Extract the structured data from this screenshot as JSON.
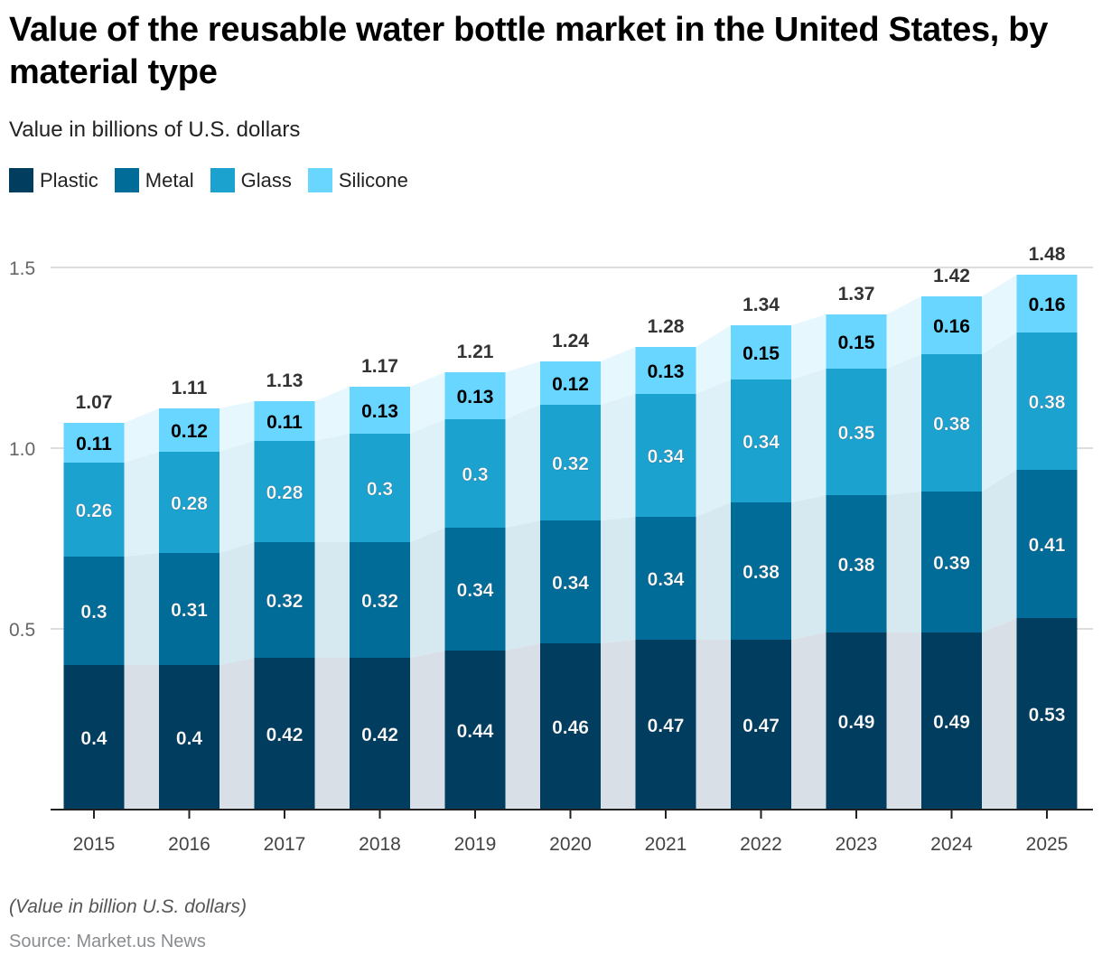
{
  "chart_data": {
    "type": "bar",
    "stacked": true,
    "title": "Value of the reusable water bottle market in the United States, by material type",
    "subtitle": "Value in billions of U.S. dollars",
    "xlabel": "",
    "ylabel": "",
    "ylim": [
      0,
      1.5
    ],
    "yticks": [
      0.5,
      1.0,
      1.5
    ],
    "ytick_labels": [
      "0.5",
      "1.0",
      "1.5"
    ],
    "grid": true,
    "legend_position": "top-left",
    "categories": [
      "2015",
      "2016",
      "2017",
      "2018",
      "2019",
      "2020",
      "2021",
      "2022",
      "2023",
      "2024",
      "2025"
    ],
    "series": [
      {
        "name": "Plastic",
        "color": "#003d5f",
        "label_color": "#ffffff",
        "values": [
          0.4,
          0.4,
          0.42,
          0.42,
          0.44,
          0.46,
          0.47,
          0.47,
          0.49,
          0.49,
          0.53
        ]
      },
      {
        "name": "Metal",
        "color": "#006c97",
        "label_color": "#ffffff",
        "values": [
          0.3,
          0.31,
          0.32,
          0.32,
          0.34,
          0.34,
          0.34,
          0.38,
          0.38,
          0.39,
          0.41
        ]
      },
      {
        "name": "Glass",
        "color": "#1ba2cf",
        "label_color": "#ffffff",
        "values": [
          0.26,
          0.28,
          0.28,
          0.3,
          0.3,
          0.32,
          0.34,
          0.34,
          0.35,
          0.38,
          0.38
        ]
      },
      {
        "name": "Silicone",
        "color": "#68d6ff",
        "label_color": "#000000",
        "values": [
          0.11,
          0.12,
          0.11,
          0.13,
          0.13,
          0.12,
          0.13,
          0.15,
          0.15,
          0.16,
          0.16
        ]
      }
    ],
    "totals": [
      "1.07",
      "1.11",
      "1.13",
      "1.17",
      "1.21",
      "1.24",
      "1.28",
      "1.34",
      "1.37",
      "1.42",
      "1.48"
    ],
    "footnote": "(Value in billion U.S. dollars)",
    "source": "Source: Market.us News"
  }
}
